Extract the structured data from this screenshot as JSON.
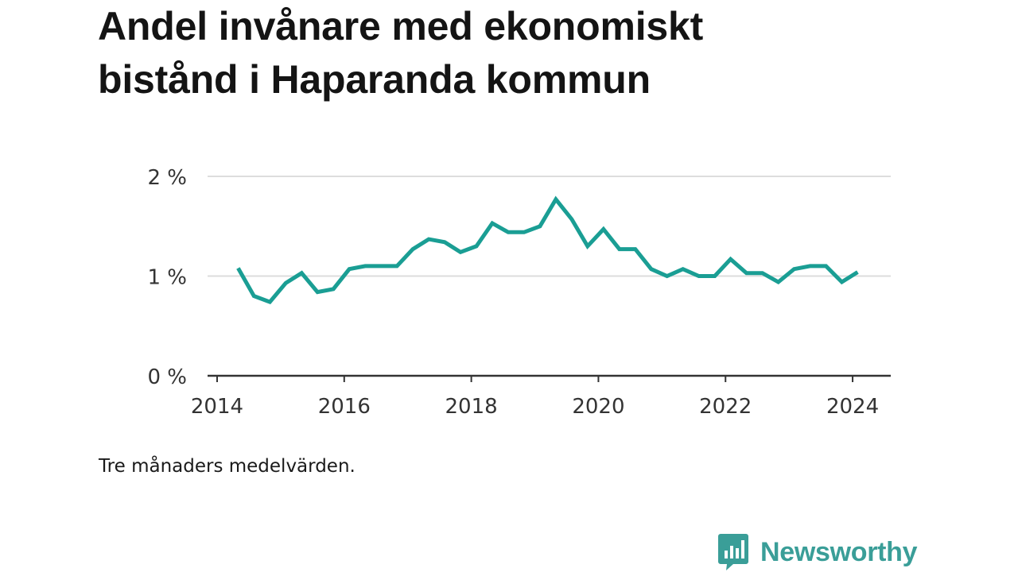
{
  "title": {
    "line1": "Andel invånare med ekonomiskt",
    "line2": "bistånd i Haparanda kommun"
  },
  "note": "Tre månaders medelvärden.",
  "brand": {
    "name": "Newsworthy",
    "icon": "bar-chart-speech-bubble-icon",
    "color": "#3a9e98"
  },
  "chart_data": {
    "type": "line",
    "title": "Andel invånare med ekonomiskt bistånd i Haparanda kommun",
    "xlabel": "",
    "ylabel": "",
    "grid": true,
    "xlim": [
      2013.85,
      2024.6
    ],
    "ylim": [
      0,
      2.1
    ],
    "x_ticks": [
      2014,
      2016,
      2018,
      2020,
      2022,
      2024
    ],
    "x_tick_labels": [
      "2014",
      "2016",
      "2018",
      "2020",
      "2022",
      "2024"
    ],
    "y_ticks": [
      0,
      1,
      2
    ],
    "y_tick_labels": [
      "0 %",
      "1 %",
      "2 %"
    ],
    "series": [
      {
        "color": "#1a9e94",
        "x": [
          2014.33,
          2014.58,
          2014.83,
          2015.08,
          2015.33,
          2015.58,
          2015.83,
          2016.08,
          2016.33,
          2016.58,
          2016.83,
          2017.08,
          2017.33,
          2017.58,
          2017.83,
          2018.08,
          2018.33,
          2018.58,
          2018.83,
          2019.08,
          2019.33,
          2019.58,
          2019.83,
          2020.08,
          2020.33,
          2020.58,
          2020.83,
          2021.08,
          2021.33,
          2021.58,
          2021.83,
          2022.08,
          2022.33,
          2022.58,
          2022.83,
          2023.08,
          2023.33,
          2023.58,
          2023.83,
          2024.08
        ],
        "values": [
          1.08,
          0.8,
          0.74,
          0.93,
          1.03,
          0.84,
          0.87,
          1.07,
          1.1,
          1.1,
          1.1,
          1.27,
          1.37,
          1.34,
          1.24,
          1.3,
          1.53,
          1.44,
          1.44,
          1.5,
          1.77,
          1.57,
          1.3,
          1.47,
          1.27,
          1.27,
          1.07,
          1.0,
          1.07,
          1.0,
          1.0,
          1.17,
          1.03,
          1.03,
          0.94,
          1.07,
          1.1,
          1.1,
          0.94,
          1.04
        ]
      }
    ]
  }
}
